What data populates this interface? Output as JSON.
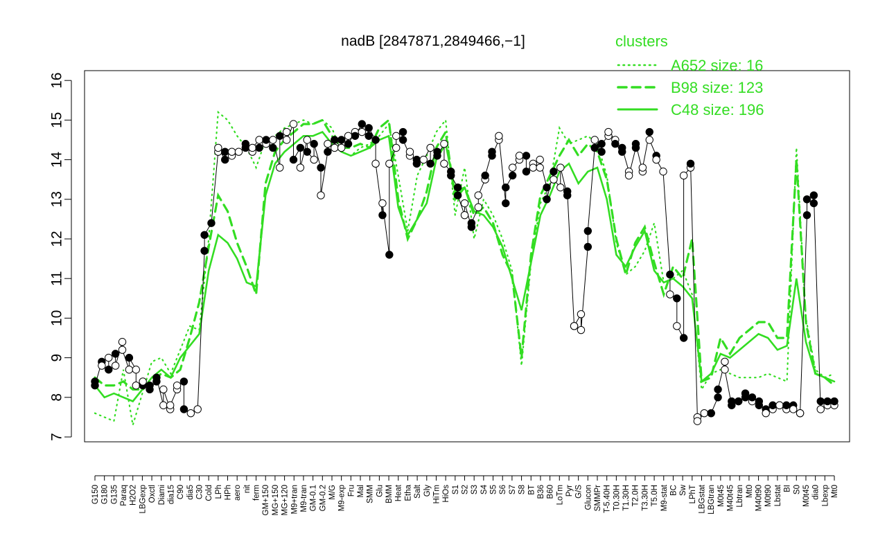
{
  "chart_data": {
    "type": "line",
    "title": "nadB [2847871,2849466,−1]",
    "xlabel": "",
    "ylabel": "",
    "ylim": [
      7,
      16
    ],
    "y_ticks": [
      "7",
      "8",
      "9",
      "10",
      "11",
      "12",
      "13",
      "14",
      "15",
      "16"
    ],
    "x_tick_labels": [
      "G150",
      "G180",
      "G135",
      "Paraq",
      "H2O2",
      "LBGexp",
      "Oxctl",
      "Diami",
      "dia15",
      "C90",
      "dia5",
      "C30",
      "Cold",
      "LPh",
      "HPh",
      "aero",
      "nit",
      "ferm",
      "GM+150",
      "MG+150",
      "MG+120",
      "M9+tran",
      "M9-tran",
      "GM-0.1",
      "GM-0.2",
      "M/G",
      "M9-exp",
      "Fru",
      "Mal",
      "SMM",
      "Glu",
      "BMM",
      "Heat",
      "Etha",
      "Salt",
      "Gly",
      "HiTm",
      "HiOs",
      "S1",
      "S2",
      "S3",
      "S4",
      "S5",
      "S6",
      "S7",
      "S8",
      "BT",
      "B36",
      "B60",
      "LoTm",
      "Pyr",
      "G/S",
      "Glucon",
      "SMMPr",
      "T-5.40H",
      "T0.30H",
      "T1.30H",
      "T2.0H",
      "T3.30H",
      "T5.0H",
      "M9-stat",
      "BC",
      "Sw",
      "LPhT",
      "LBGstat",
      "LBGtran",
      "M0t45",
      "M40t45",
      "Lbtran",
      "Mt0",
      "M40t90",
      "M0t90",
      "Lbstat",
      "BI",
      "S0",
      "M0t45",
      "dia0",
      "Lbexp",
      "Mt0"
    ],
    "legend_title": "clusters",
    "legend_position": "top-right",
    "color": "#33dd22",
    "series": [
      {
        "name": "A652 size: 16",
        "style": "dotted",
        "values": [
          7.6,
          7.5,
          7.4,
          8.7,
          7.3,
          8.1,
          8.9,
          9.0,
          8.6,
          9.2,
          9.8,
          9.7,
          12.0,
          15.2,
          15.0,
          14.6,
          14.3,
          13.8,
          14.5,
          14.6,
          14.8,
          14.9,
          15.0,
          14.9,
          15.0,
          14.8,
          14.2,
          14.1,
          14.3,
          14.4,
          14.6,
          14.9,
          13.6,
          12.2,
          13.6,
          14.1,
          14.7,
          15.0,
          12.6,
          13.8,
          12.0,
          13.0,
          12.6,
          12.0,
          11.2,
          8.8,
          11.4,
          12.9,
          13.4,
          14.8,
          14.4,
          14.5,
          14.6,
          14.4,
          13.6,
          11.9,
          11.1,
          11.3,
          11.7,
          12.4,
          10.9,
          11.0,
          11.2,
          10.6,
          8.2,
          8.6,
          8.7,
          8.6,
          8.5,
          8.5,
          8.5,
          8.6,
          8.5,
          8.4,
          14.3,
          10.0,
          8.7,
          8.5,
          8.6
        ]
      },
      {
        "name": "B98 size: 123",
        "style": "dashed",
        "values": [
          8.5,
          8.3,
          8.3,
          8.4,
          8.2,
          8.2,
          8.4,
          8.6,
          8.5,
          8.7,
          9.5,
          10.4,
          11.8,
          13.1,
          12.7,
          11.9,
          11.3,
          10.6,
          13.4,
          14.2,
          14.5,
          14.7,
          14.9,
          14.9,
          15.0,
          14.6,
          14.3,
          14.3,
          14.4,
          14.3,
          14.8,
          15.0,
          13.0,
          12.0,
          12.5,
          13.2,
          14.3,
          14.7,
          13.0,
          13.3,
          12.6,
          12.8,
          12.4,
          11.6,
          11.1,
          9.0,
          11.6,
          13.1,
          13.6,
          14.1,
          14.5,
          14.1,
          14.4,
          14.2,
          13.5,
          12.0,
          11.1,
          11.9,
          12.3,
          11.4,
          10.6,
          11.3,
          11.0,
          12.0,
          8.4,
          8.5,
          9.5,
          9.1,
          9.5,
          9.7,
          9.9,
          9.9,
          9.5,
          9.5,
          14.0,
          9.9,
          8.6,
          8.5,
          8.3
        ]
      },
      {
        "name": "C48 size: 196",
        "style": "solid",
        "values": [
          8.3,
          8.0,
          8.1,
          8.0,
          7.9,
          8.2,
          8.5,
          8.7,
          8.5,
          9.0,
          9.3,
          9.6,
          11.2,
          12.1,
          11.9,
          11.5,
          10.9,
          10.8,
          13.1,
          13.9,
          14.2,
          14.4,
          14.6,
          14.6,
          14.7,
          14.4,
          14.2,
          14.1,
          14.2,
          14.3,
          14.5,
          14.6,
          12.8,
          12.1,
          12.5,
          12.9,
          14.0,
          14.4,
          13.2,
          13.3,
          12.7,
          12.6,
          12.3,
          11.8,
          11.0,
          10.2,
          11.4,
          12.6,
          13.1,
          13.7,
          13.9,
          13.4,
          13.7,
          13.8,
          13.0,
          11.6,
          11.3,
          11.8,
          12.2,
          11.2,
          10.9,
          11.0,
          10.8,
          10.5,
          8.4,
          8.6,
          9.1,
          9.0,
          9.2,
          9.4,
          9.6,
          9.5,
          9.2,
          9.3,
          11.0,
          9.4,
          8.6,
          8.5,
          8.4
        ]
      }
    ],
    "points": [
      [
        0,
        8.4,
        "f"
      ],
      [
        0,
        8.3,
        "f"
      ],
      [
        1,
        8.9,
        "f"
      ],
      [
        1,
        8.8,
        "o"
      ],
      [
        2,
        8.7,
        "f"
      ],
      [
        2,
        9.0,
        "o"
      ],
      [
        3,
        9.1,
        "f"
      ],
      [
        3,
        8.8,
        "o"
      ],
      [
        4,
        9.4,
        "o"
      ],
      [
        4,
        9.2,
        "o"
      ],
      [
        5,
        8.7,
        "o"
      ],
      [
        5,
        9.0,
        "f"
      ],
      [
        6,
        8.7,
        "o"
      ],
      [
        6,
        8.3,
        "o"
      ],
      [
        7,
        8.3,
        "f"
      ],
      [
        7,
        8.4,
        "o"
      ],
      [
        8,
        8.3,
        "f"
      ],
      [
        8,
        8.2,
        "f"
      ],
      [
        9,
        8.4,
        "f"
      ],
      [
        9,
        8.5,
        "f"
      ],
      [
        10,
        7.8,
        "o"
      ],
      [
        10,
        8.2,
        "o"
      ],
      [
        11,
        7.7,
        "o"
      ],
      [
        11,
        7.8,
        "o"
      ],
      [
        12,
        8.2,
        "o"
      ],
      [
        12,
        8.3,
        "o"
      ],
      [
        13,
        8.4,
        "f"
      ],
      [
        13,
        7.7,
        "f"
      ],
      [
        14,
        7.6,
        "o"
      ],
      [
        15,
        7.7,
        "o"
      ],
      [
        16,
        11.7,
        "f"
      ],
      [
        16,
        12.1,
        "f"
      ],
      [
        17,
        12.4,
        "f"
      ],
      [
        18,
        14.2,
        "o"
      ],
      [
        18,
        14.3,
        "o"
      ],
      [
        19,
        14.0,
        "f"
      ],
      [
        19,
        14.2,
        "f"
      ],
      [
        20,
        14.1,
        "o"
      ],
      [
        20,
        14.2,
        "o"
      ],
      [
        21,
        14.2,
        "o"
      ],
      [
        22,
        14.3,
        "f"
      ],
      [
        22,
        14.4,
        "f"
      ],
      [
        23,
        14.2,
        "o"
      ],
      [
        23,
        14.3,
        "o"
      ],
      [
        24,
        14.5,
        "o"
      ],
      [
        24,
        14.3,
        "f"
      ],
      [
        25,
        14.4,
        "o"
      ],
      [
        25,
        14.5,
        "f"
      ],
      [
        26,
        14.3,
        "f"
      ],
      [
        26,
        14.5,
        "o"
      ],
      [
        27,
        13.8,
        "o"
      ],
      [
        27,
        14.6,
        "f"
      ],
      [
        28,
        14.7,
        "o"
      ],
      [
        28,
        14.5,
        "o"
      ],
      [
        29,
        14.9,
        "o"
      ],
      [
        29,
        14.0,
        "f"
      ],
      [
        30,
        14.3,
        "f"
      ],
      [
        30,
        13.8,
        "o"
      ],
      [
        31,
        14.5,
        "o"
      ],
      [
        31,
        14.2,
        "f"
      ],
      [
        32,
        14.0,
        "o"
      ],
      [
        32,
        14.4,
        "f"
      ],
      [
        33,
        13.8,
        "f"
      ],
      [
        33,
        13.1,
        "o"
      ],
      [
        34,
        14.2,
        "f"
      ],
      [
        34,
        14.4,
        "o"
      ],
      [
        35,
        14.3,
        "o"
      ],
      [
        35,
        14.5,
        "f"
      ],
      [
        36,
        14.3,
        "o"
      ],
      [
        36,
        14.5,
        "f"
      ],
      [
        37,
        14.6,
        "o"
      ],
      [
        37,
        14.4,
        "f"
      ],
      [
        38,
        14.7,
        "o"
      ],
      [
        38,
        14.6,
        "f"
      ],
      [
        39,
        14.9,
        "f"
      ],
      [
        39,
        14.7,
        "o"
      ],
      [
        40,
        14.6,
        "f"
      ],
      [
        40,
        14.8,
        "f"
      ],
      [
        41,
        14.5,
        "f"
      ],
      [
        41,
        13.9,
        "o"
      ],
      [
        42,
        12.6,
        "f"
      ],
      [
        42,
        12.9,
        "o"
      ],
      [
        43,
        11.6,
        "f"
      ],
      [
        43,
        13.9,
        "o"
      ],
      [
        44,
        14.3,
        "o"
      ],
      [
        44,
        14.6,
        "o"
      ],
      [
        45,
        14.7,
        "f"
      ],
      [
        45,
        14.5,
        "f"
      ],
      [
        46,
        14.1,
        "o"
      ],
      [
        46,
        14.2,
        "o"
      ],
      [
        47,
        13.9,
        "f"
      ],
      [
        47,
        14.0,
        "f"
      ],
      [
        48,
        14.0,
        "o"
      ],
      [
        49,
        14.3,
        "o"
      ],
      [
        49,
        13.9,
        "f"
      ],
      [
        50,
        14.2,
        "f"
      ],
      [
        50,
        14.1,
        "f"
      ],
      [
        51,
        14.4,
        "o"
      ],
      [
        51,
        13.9,
        "o"
      ],
      [
        52,
        13.7,
        "f"
      ],
      [
        52,
        13.6,
        "f"
      ],
      [
        53,
        13.3,
        "f"
      ],
      [
        53,
        13.1,
        "f"
      ],
      [
        54,
        12.6,
        "o"
      ],
      [
        54,
        12.9,
        "o"
      ],
      [
        55,
        12.3,
        "f"
      ],
      [
        55,
        12.4,
        "f"
      ],
      [
        56,
        12.8,
        "o"
      ],
      [
        56,
        13.1,
        "o"
      ],
      [
        57,
        13.5,
        "o"
      ],
      [
        57,
        13.6,
        "f"
      ],
      [
        58,
        14.2,
        "f"
      ],
      [
        58,
        14.1,
        "f"
      ],
      [
        59,
        14.5,
        "o"
      ],
      [
        59,
        14.6,
        "o"
      ],
      [
        60,
        12.9,
        "f"
      ],
      [
        60,
        13.3,
        "f"
      ],
      [
        61,
        13.6,
        "f"
      ],
      [
        61,
        13.8,
        "o"
      ],
      [
        62,
        14.0,
        "o"
      ],
      [
        62,
        14.1,
        "o"
      ],
      [
        63,
        14.1,
        "f"
      ],
      [
        63,
        13.7,
        "f"
      ],
      [
        64,
        13.9,
        "o"
      ],
      [
        64,
        13.8,
        "o"
      ],
      [
        65,
        13.8,
        "o"
      ],
      [
        65,
        14.0,
        "o"
      ],
      [
        66,
        13.3,
        "f"
      ],
      [
        66,
        13.0,
        "f"
      ],
      [
        67,
        13.7,
        "f"
      ],
      [
        67,
        13.5,
        "o"
      ],
      [
        68,
        13.3,
        "o"
      ],
      [
        68,
        13.8,
        "o"
      ],
      [
        69,
        13.1,
        "f"
      ],
      [
        69,
        13.2,
        "f"
      ],
      [
        70,
        9.8,
        "f"
      ],
      [
        70,
        9.8,
        "o"
      ],
      [
        71,
        10.1,
        "o"
      ],
      [
        71,
        9.7,
        "o"
      ],
      [
        72,
        11.8,
        "f"
      ],
      [
        72,
        12.2,
        "f"
      ],
      [
        73,
        14.3,
        "f"
      ],
      [
        73,
        14.5,
        "o"
      ],
      [
        74,
        14.2,
        "f"
      ],
      [
        74,
        14.4,
        "f"
      ],
      [
        75,
        14.6,
        "o"
      ],
      [
        75,
        14.7,
        "o"
      ],
      [
        76,
        14.5,
        "o"
      ],
      [
        76,
        14.4,
        "f"
      ],
      [
        77,
        14.2,
        "f"
      ],
      [
        77,
        14.3,
        "f"
      ],
      [
        78,
        13.7,
        "o"
      ],
      [
        78,
        13.6,
        "o"
      ],
      [
        79,
        14.3,
        "f"
      ],
      [
        79,
        14.4,
        "f"
      ],
      [
        80,
        13.7,
        "o"
      ],
      [
        80,
        13.8,
        "o"
      ],
      [
        81,
        14.7,
        "f"
      ],
      [
        81,
        14.5,
        "o"
      ],
      [
        82,
        14.1,
        "f"
      ],
      [
        82,
        14.0,
        "o"
      ],
      [
        83,
        13.7,
        "o"
      ],
      [
        84,
        11.1,
        "f"
      ],
      [
        84,
        10.6,
        "o"
      ],
      [
        85,
        10.5,
        "f"
      ],
      [
        85,
        9.8,
        "o"
      ],
      [
        86,
        9.5,
        "f"
      ],
      [
        86,
        13.6,
        "o"
      ],
      [
        87,
        13.8,
        "o"
      ],
      [
        87,
        13.9,
        "f"
      ],
      [
        88,
        7.5,
        "o"
      ],
      [
        88,
        7.4,
        "o"
      ],
      [
        89,
        7.6,
        "o"
      ],
      [
        90,
        7.6,
        "f"
      ],
      [
        90,
        7.6,
        "f"
      ],
      [
        91,
        8.0,
        "f"
      ],
      [
        91,
        8.2,
        "f"
      ],
      [
        92,
        8.9,
        "o"
      ],
      [
        92,
        8.7,
        "o"
      ],
      [
        93,
        7.8,
        "f"
      ],
      [
        93,
        7.9,
        "f"
      ],
      [
        94,
        7.9,
        "o"
      ],
      [
        94,
        7.9,
        "f"
      ],
      [
        95,
        8.0,
        "f"
      ],
      [
        95,
        8.1,
        "f"
      ],
      [
        96,
        7.9,
        "o"
      ],
      [
        96,
        8.0,
        "f"
      ],
      [
        97,
        7.9,
        "f"
      ],
      [
        97,
        7.8,
        "f"
      ],
      [
        98,
        7.7,
        "f"
      ],
      [
        98,
        7.6,
        "o"
      ],
      [
        99,
        7.7,
        "o"
      ],
      [
        99,
        7.8,
        "f"
      ],
      [
        100,
        7.8,
        "f"
      ],
      [
        100,
        7.8,
        "o"
      ],
      [
        101,
        7.7,
        "o"
      ],
      [
        101,
        7.8,
        "f"
      ],
      [
        102,
        7.8,
        "f"
      ],
      [
        102,
        7.7,
        "o"
      ],
      [
        103,
        7.6,
        "o"
      ],
      [
        103,
        7.6,
        "o"
      ],
      [
        104,
        12.6,
        "f"
      ],
      [
        104,
        13.0,
        "f"
      ],
      [
        105,
        12.9,
        "f"
      ],
      [
        105,
        13.1,
        "f"
      ],
      [
        106,
        7.7,
        "o"
      ],
      [
        106,
        7.9,
        "f"
      ],
      [
        107,
        7.8,
        "o"
      ],
      [
        107,
        7.9,
        "f"
      ],
      [
        108,
        7.8,
        "o"
      ],
      [
        108,
        7.9,
        "f"
      ]
    ]
  }
}
